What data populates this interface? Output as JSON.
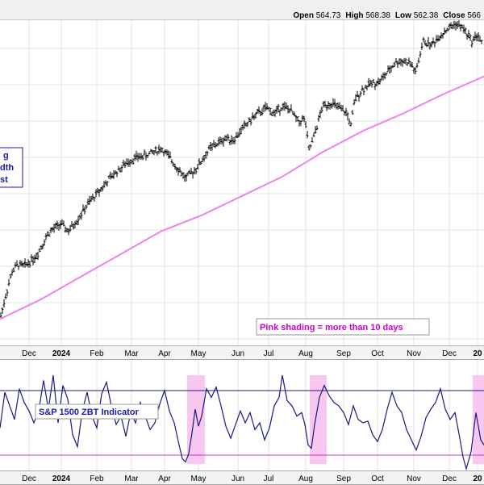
{
  "ohlc": {
    "open_label": "Open",
    "open": "564.73",
    "high_label": "High",
    "high": "568.38",
    "low_label": "Low",
    "low": "562.38",
    "close_label": "Close",
    "close": "566"
  },
  "annotations": {
    "left_box_lines": [
      "g",
      "dth",
      "st"
    ],
    "shading_note": "Pink shading = more than 10 days",
    "indicator_label": "S&P 1500 ZBT Indicator"
  },
  "colors": {
    "price_bars": "#000000",
    "moving_average": "#ee82ee",
    "indicator_line": "#1a1a80",
    "upper_threshold": "#1a1a80",
    "lower_threshold": "#cc33cc",
    "shading": "#f8c8f0",
    "annotation_text": "#1a1aaa",
    "shading_note_text": "#cc00cc"
  },
  "chart_data": [
    {
      "type": "ohlc",
      "x_tick_labels": [
        "Dec",
        "2024",
        "Feb",
        "Mar",
        "Apr",
        "May",
        "Jun",
        "Jul",
        "Aug",
        "Sep",
        "Oct",
        "Nov",
        "Dec",
        "20"
      ],
      "ylim": [
        395,
        580
      ],
      "y_tick_labels": [],
      "grid": true,
      "series": [
        {
          "type": "price",
          "values": [
            [
              0,
              410
            ],
            [
              8,
              425
            ],
            [
              15,
              437
            ],
            [
              22,
              441
            ],
            [
              30,
              440
            ],
            [
              45,
              446
            ],
            [
              60,
              459
            ],
            [
              75,
              464
            ],
            [
              85,
              460
            ],
            [
              95,
              466
            ],
            [
              110,
              476
            ],
            [
              125,
              484
            ],
            [
              140,
              492
            ],
            [
              150,
              496
            ],
            [
              160,
              500
            ],
            [
              170,
              502
            ],
            [
              180,
              503
            ],
            [
              190,
              505
            ],
            [
              200,
              507
            ],
            [
              210,
              502
            ],
            [
              220,
              496
            ],
            [
              230,
              490
            ],
            [
              240,
              494
            ],
            [
              250,
              500
            ],
            [
              260,
              507
            ],
            [
              270,
              510
            ],
            [
              280,
              513
            ],
            [
              290,
              512
            ],
            [
              300,
              518
            ],
            [
              310,
              523
            ],
            [
              320,
              527
            ],
            [
              330,
              530
            ],
            [
              340,
              527
            ],
            [
              350,
              531
            ],
            [
              360,
              529
            ],
            [
              370,
              522
            ],
            [
              378,
              524
            ],
            [
              383,
              506
            ],
            [
              388,
              512
            ],
            [
              393,
              520
            ],
            [
              400,
              531
            ],
            [
              410,
              533
            ],
            [
              420,
              530
            ],
            [
              430,
              527
            ],
            [
              435,
              520
            ],
            [
              440,
              535
            ],
            [
              450,
              541
            ],
            [
              460,
              544
            ],
            [
              470,
              545
            ],
            [
              480,
              550
            ],
            [
              490,
              556
            ],
            [
              500,
              557
            ],
            [
              510,
              555
            ],
            [
              515,
              550
            ],
            [
              520,
              559
            ],
            [
              525,
              568
            ],
            [
              535,
              566
            ],
            [
              545,
              571
            ],
            [
              555,
              575
            ],
            [
              565,
              578
            ],
            [
              575,
              575
            ],
            [
              585,
              568
            ],
            [
              592,
              572
            ],
            [
              598,
              566
            ]
          ]
        },
        {
          "type": "moving-average",
          "values": [
            [
              0,
              410
            ],
            [
              50,
              421
            ],
            [
              100,
              434
            ],
            [
              150,
              447
            ],
            [
              200,
              460
            ],
            [
              250,
              469
            ],
            [
              300,
              480
            ],
            [
              350,
              491
            ],
            [
              400,
              505
            ],
            [
              450,
              517
            ],
            [
              500,
              527
            ],
            [
              550,
              538
            ],
            [
              600,
              548
            ]
          ]
        }
      ]
    },
    {
      "type": "line",
      "name": "",
      "upper_threshold": 0.67,
      "lower_threshold": 0.29,
      "ylim": [
        0.2,
        0.85
      ],
      "shaded_x_ranges": [
        [
          232,
          254
        ],
        [
          384,
          405
        ],
        [
          586,
          600
        ]
      ],
      "values": [
        [
          0,
          0.45
        ],
        [
          6,
          0.66
        ],
        [
          12,
          0.58
        ],
        [
          18,
          0.5
        ],
        [
          24,
          0.68
        ],
        [
          30,
          0.6
        ],
        [
          36,
          0.55
        ],
        [
          42,
          0.48
        ],
        [
          48,
          0.55
        ],
        [
          54,
          0.73
        ],
        [
          60,
          0.56
        ],
        [
          66,
          0.76
        ],
        [
          72,
          0.48
        ],
        [
          78,
          0.7
        ],
        [
          84,
          0.62
        ],
        [
          90,
          0.41
        ],
        [
          96,
          0.34
        ],
        [
          102,
          0.55
        ],
        [
          108,
          0.66
        ],
        [
          114,
          0.52
        ],
        [
          120,
          0.45
        ],
        [
          126,
          0.65
        ],
        [
          132,
          0.72
        ],
        [
          138,
          0.58
        ],
        [
          144,
          0.47
        ],
        [
          150,
          0.52
        ],
        [
          156,
          0.4
        ],
        [
          162,
          0.54
        ],
        [
          168,
          0.48
        ],
        [
          174,
          0.6
        ],
        [
          180,
          0.52
        ],
        [
          186,
          0.44
        ],
        [
          192,
          0.48
        ],
        [
          198,
          0.59
        ],
        [
          204,
          0.67
        ],
        [
          210,
          0.55
        ],
        [
          216,
          0.48
        ],
        [
          222,
          0.35
        ],
        [
          226,
          0.27
        ],
        [
          230,
          0.25
        ],
        [
          234,
          0.3
        ],
        [
          238,
          0.42
        ],
        [
          242,
          0.56
        ],
        [
          246,
          0.46
        ],
        [
          250,
          0.52
        ],
        [
          256,
          0.68
        ],
        [
          262,
          0.63
        ],
        [
          268,
          0.69
        ],
        [
          274,
          0.58
        ],
        [
          280,
          0.46
        ],
        [
          286,
          0.39
        ],
        [
          292,
          0.47
        ],
        [
          298,
          0.55
        ],
        [
          304,
          0.48
        ],
        [
          310,
          0.54
        ],
        [
          316,
          0.44
        ],
        [
          322,
          0.48
        ],
        [
          328,
          0.38
        ],
        [
          334,
          0.45
        ],
        [
          340,
          0.58
        ],
        [
          346,
          0.63
        ],
        [
          350,
          0.76
        ],
        [
          356,
          0.61
        ],
        [
          362,
          0.58
        ],
        [
          368,
          0.52
        ],
        [
          374,
          0.54
        ],
        [
          378,
          0.47
        ],
        [
          382,
          0.35
        ],
        [
          386,
          0.33
        ],
        [
          390,
          0.47
        ],
        [
          396,
          0.63
        ],
        [
          402,
          0.7
        ],
        [
          408,
          0.64
        ],
        [
          414,
          0.6
        ],
        [
          420,
          0.58
        ],
        [
          426,
          0.54
        ],
        [
          432,
          0.47
        ],
        [
          438,
          0.58
        ],
        [
          444,
          0.5
        ],
        [
          450,
          0.48
        ],
        [
          456,
          0.49
        ],
        [
          462,
          0.41
        ],
        [
          468,
          0.37
        ],
        [
          474,
          0.44
        ],
        [
          480,
          0.56
        ],
        [
          486,
          0.66
        ],
        [
          492,
          0.58
        ],
        [
          498,
          0.54
        ],
        [
          504,
          0.44
        ],
        [
          510,
          0.38
        ],
        [
          516,
          0.32
        ],
        [
          522,
          0.4
        ],
        [
          528,
          0.51
        ],
        [
          534,
          0.56
        ],
        [
          540,
          0.6
        ],
        [
          546,
          0.68
        ],
        [
          552,
          0.56
        ],
        [
          558,
          0.5
        ],
        [
          564,
          0.54
        ],
        [
          570,
          0.39
        ],
        [
          574,
          0.28
        ],
        [
          578,
          0.21
        ],
        [
          584,
          0.31
        ],
        [
          590,
          0.54
        ],
        [
          596,
          0.38
        ],
        [
          600,
          0.35
        ]
      ]
    }
  ]
}
